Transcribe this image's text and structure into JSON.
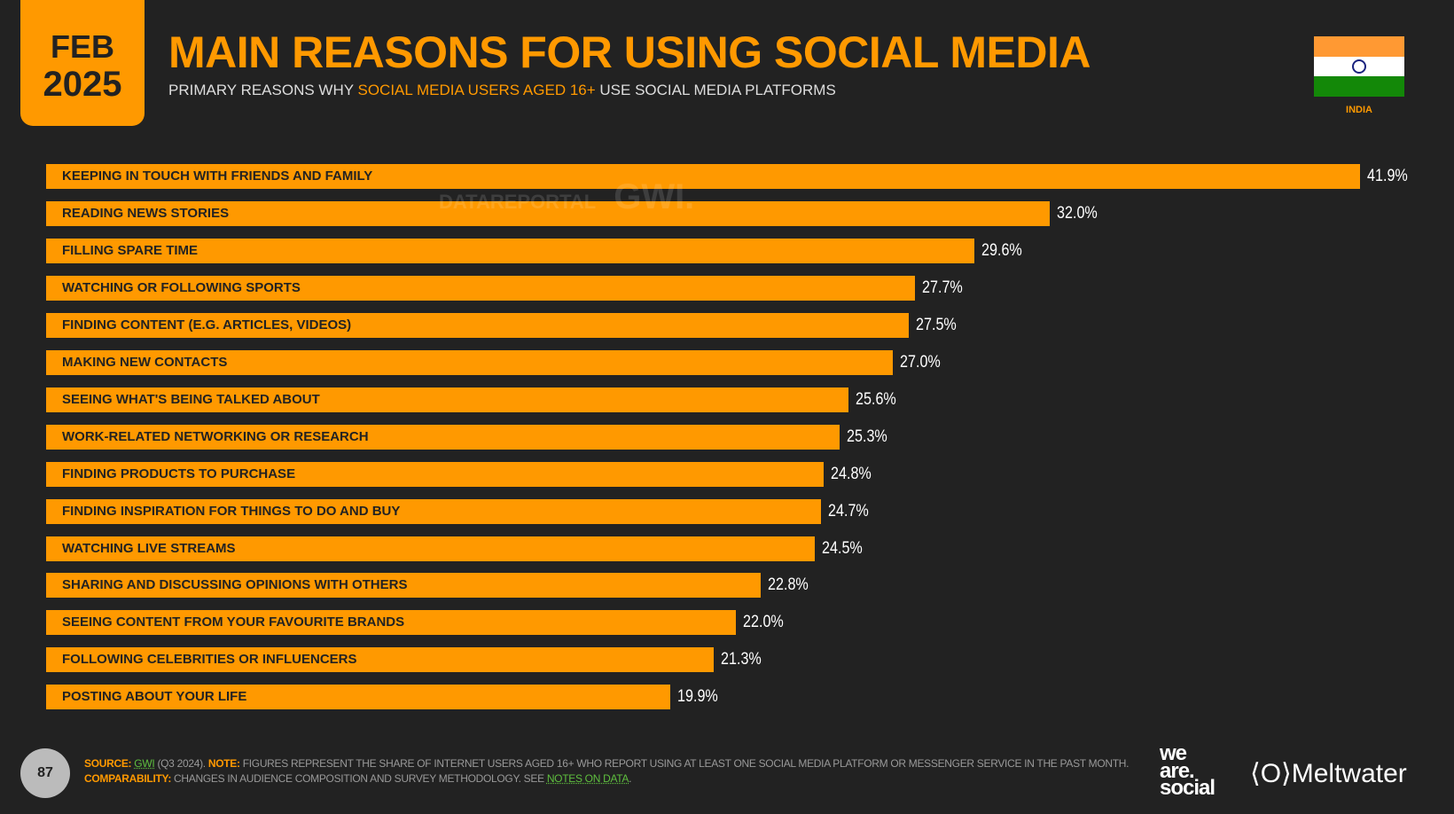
{
  "header": {
    "month": "FEB",
    "year": "2025",
    "title": "MAIN REASONS FOR USING SOCIAL MEDIA",
    "subtitle_pre": "PRIMARY REASONS WHY ",
    "subtitle_highlight": "SOCIAL MEDIA USERS AGED 16+",
    "subtitle_post": " USE SOCIAL MEDIA PLATFORMS",
    "country": "INDIA"
  },
  "watermark": {
    "left": "DATAREPORTAL",
    "right": "GWI."
  },
  "colors": {
    "accent": "#ff9900",
    "background": "#222222",
    "flag": [
      "#ff9933",
      "#ffffff",
      "#138808"
    ]
  },
  "chart_data": {
    "type": "bar",
    "orientation": "horizontal",
    "unit": "%",
    "categories": [
      "KEEPING IN TOUCH WITH FRIENDS AND FAMILY",
      "READING NEWS STORIES",
      "FILLING SPARE TIME",
      "WATCHING OR FOLLOWING SPORTS",
      "FINDING CONTENT (E.G. ARTICLES, VIDEOS)",
      "MAKING NEW CONTACTS",
      "SEEING WHAT'S BEING TALKED ABOUT",
      "WORK-RELATED NETWORKING OR RESEARCH",
      "FINDING PRODUCTS TO PURCHASE",
      "FINDING INSPIRATION FOR THINGS TO DO AND BUY",
      "WATCHING LIVE STREAMS",
      "SHARING AND DISCUSSING OPINIONS WITH OTHERS",
      "SEEING CONTENT FROM YOUR FAVOURITE BRANDS",
      "FOLLOWING CELEBRITIES OR INFLUENCERS",
      "POSTING ABOUT YOUR LIFE"
    ],
    "values": [
      41.9,
      32.0,
      29.6,
      27.7,
      27.5,
      27.0,
      25.6,
      25.3,
      24.8,
      24.7,
      24.5,
      22.8,
      22.0,
      21.3,
      19.9
    ],
    "labels": [
      "41.9%",
      "32.0%",
      "29.6%",
      "27.7%",
      "27.5%",
      "27.0%",
      "25.6%",
      "25.3%",
      "24.8%",
      "24.7%",
      "24.5%",
      "22.8%",
      "22.0%",
      "21.3%",
      "19.9%"
    ],
    "grid": false
  },
  "footer": {
    "page": "87",
    "source_label": "SOURCE:",
    "source": "GWI",
    "source_detail": " (Q3 2024). ",
    "note_label": "NOTE:",
    "note": " FIGURES REPRESENT THE SHARE OF INTERNET USERS AGED 16+ WHO REPORT USING AT LEAST ONE SOCIAL MEDIA PLATFORM OR MESSENGER SERVICE IN THE PAST MONTH.",
    "comp_label": "COMPARABILITY:",
    "comp": " CHANGES IN AUDIENCE COMPOSITION AND SURVEY METHODOLOGY. SEE ",
    "notes_link": "NOTES ON DATA",
    "end": ".",
    "logo1": "we are social",
    "logo2": "Meltwater"
  }
}
